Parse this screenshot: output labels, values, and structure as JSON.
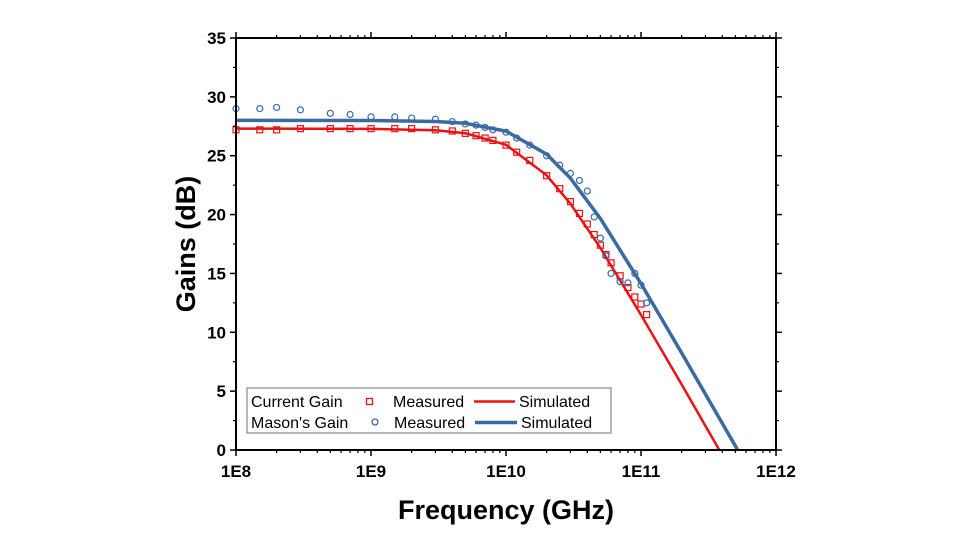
{
  "chart_data": {
    "type": "line",
    "xlabel": "Frequency (GHz)",
    "ylabel": "Gains (dB)",
    "x_scale": "log",
    "xlim": [
      100000000.0,
      1000000000000.0
    ],
    "ylim": [
      0,
      35
    ],
    "x_ticks": [
      100000000.0,
      1000000000.0,
      10000000000.0,
      100000000000.0,
      1000000000000.0
    ],
    "x_tick_labels": [
      "1E8",
      "1E9",
      "1E10",
      "1E11",
      "1E12"
    ],
    "y_ticks": [
      0,
      5,
      10,
      15,
      20,
      25,
      30,
      35
    ],
    "y_tick_labels": [
      "0",
      "5",
      "10",
      "15",
      "20",
      "25",
      "30",
      "35"
    ],
    "grid": false,
    "legend_placement": "bottom-left",
    "legend": {
      "rows": [
        {
          "group": "Current Gain",
          "measured": "Measured",
          "simulated": "Simulated"
        },
        {
          "group": "Mason's Gain",
          "measured": "Measured",
          "simulated": "Simulated"
        }
      ]
    },
    "colors": {
      "current_gain": "#ee1111",
      "masons_gain": "#3a6aa3"
    },
    "series": [
      {
        "name": "Current Gain Measured",
        "kind": "scatter",
        "marker": "square",
        "color": "#ee1111",
        "x": [
          100000000.0,
          150000000.0,
          200000000.0,
          300000000.0,
          500000000.0,
          700000000.0,
          1000000000.0,
          1500000000.0,
          2000000000.0,
          3000000000.0,
          4000000000.0,
          5000000000.0,
          6000000000.0,
          7000000000.0,
          8000000000.0,
          10000000000.0,
          12000000000.0,
          15000000000.0,
          20000000000.0,
          25000000000.0,
          30000000000.0,
          35000000000.0,
          40000000000.0,
          45000000000.0,
          50000000000.0,
          55000000000.0,
          60000000000.0,
          70000000000.0,
          80000000000.0,
          90000000000.0,
          100000000000.0,
          110000000000.0
        ],
        "y": [
          27.2,
          27.2,
          27.2,
          27.3,
          27.3,
          27.3,
          27.3,
          27.3,
          27.3,
          27.2,
          27.1,
          26.9,
          26.7,
          26.5,
          26.3,
          25.9,
          25.3,
          24.6,
          23.3,
          22.2,
          21.1,
          20.1,
          19.2,
          18.3,
          17.4,
          16.6,
          15.9,
          14.8,
          13.8,
          13.0,
          12.4,
          11.5
        ]
      },
      {
        "name": "Current Gain Simulated",
        "kind": "line",
        "color": "#ee1111",
        "x": [
          100000000.0,
          1000000000.0,
          3000000000.0,
          5000000000.0,
          10000000000.0,
          20000000000.0,
          30000000000.0,
          50000000000.0,
          100000000000.0,
          200000000000.0,
          380000000000.0
        ],
        "y": [
          27.3,
          27.28,
          27.16,
          26.91,
          25.93,
          23.34,
          20.92,
          17.17,
          11.48,
          5.57,
          0
        ]
      },
      {
        "name": "Mason's Gain Measured",
        "kind": "scatter",
        "marker": "circle",
        "color": "#3a6aa3",
        "x": [
          100000000.0,
          150000000.0,
          200000000.0,
          300000000.0,
          500000000.0,
          700000000.0,
          1000000000.0,
          1500000000.0,
          2000000000.0,
          3000000000.0,
          4000000000.0,
          5000000000.0,
          6000000000.0,
          7000000000.0,
          8000000000.0,
          10000000000.0,
          12000000000.0,
          15000000000.0,
          20000000000.0,
          25000000000.0,
          30000000000.0,
          35000000000.0,
          40000000000.0,
          45000000000.0,
          50000000000.0,
          55000000000.0,
          60000000000.0,
          70000000000.0,
          80000000000.0,
          90000000000.0,
          100000000000.0,
          110000000000.0
        ],
        "y": [
          29.0,
          29.0,
          29.1,
          28.9,
          28.6,
          28.5,
          28.3,
          28.3,
          28.2,
          28.1,
          27.9,
          27.7,
          27.6,
          27.4,
          27.2,
          27.0,
          26.5,
          25.9,
          25.0,
          24.2,
          23.5,
          22.9,
          22.0,
          19.8,
          18.0,
          16.5,
          15.0,
          14.3,
          14.2,
          15.0,
          14.0,
          12.5
        ]
      },
      {
        "name": "Mason's Gain Simulated",
        "kind": "line",
        "color": "#3a6aa3",
        "x": [
          100000000.0,
          1000000000.0,
          3000000000.0,
          5000000000.0,
          10000000000.0,
          20000000000.0,
          30000000000.0,
          50000000000.0,
          100000000000.0,
          200000000000.0,
          520000000000.0
        ],
        "y": [
          28.0,
          27.99,
          27.91,
          27.75,
          27.09,
          25.14,
          23.09,
          19.66,
          14.14,
          8.25,
          0
        ]
      }
    ]
  }
}
